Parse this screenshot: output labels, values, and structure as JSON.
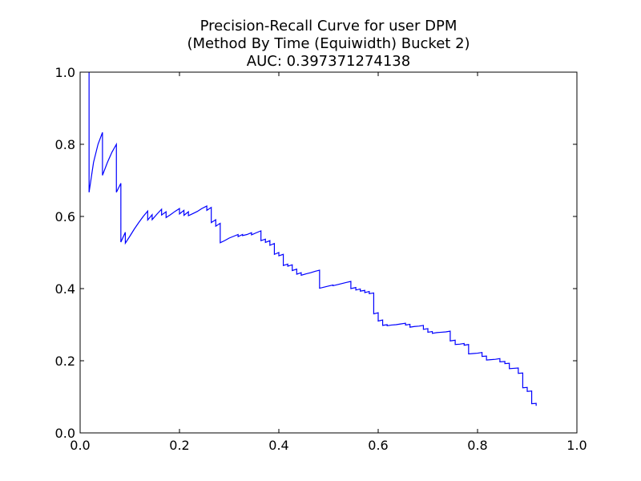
{
  "chart_data": {
    "type": "line",
    "title_lines": [
      "Precision-Recall Curve for user DPM",
      "(Method By Time (Equiwidth) Bucket 2)",
      "AUC: 0.397371274138"
    ],
    "xlabel": "",
    "ylabel": "",
    "xlim": [
      0.0,
      1.0
    ],
    "ylim": [
      0.0,
      1.0
    ],
    "x_ticks": [
      "0.0",
      "0.2",
      "0.4",
      "0.6",
      "0.8",
      "1.0"
    ],
    "y_ticks": [
      "0.0",
      "0.2",
      "0.4",
      "0.6",
      "0.8",
      "1.0"
    ],
    "grid": false,
    "legend": "none",
    "series": [
      {
        "color": "#0000ff",
        "points": [
          [
            0.018,
            1.0
          ],
          [
            0.018,
            0.667
          ],
          [
            0.027,
            0.75
          ],
          [
            0.036,
            0.8
          ],
          [
            0.045,
            0.833
          ],
          [
            0.045,
            0.714
          ],
          [
            0.055,
            0.75
          ],
          [
            0.064,
            0.778
          ],
          [
            0.073,
            0.8
          ],
          [
            0.073,
            0.667
          ],
          [
            0.082,
            0.692
          ],
          [
            0.082,
            0.529
          ],
          [
            0.091,
            0.556
          ],
          [
            0.091,
            0.526
          ],
          [
            0.1,
            0.545
          ],
          [
            0.109,
            0.565
          ],
          [
            0.118,
            0.583
          ],
          [
            0.127,
            0.6
          ],
          [
            0.136,
            0.615
          ],
          [
            0.136,
            0.59
          ],
          [
            0.145,
            0.605
          ],
          [
            0.145,
            0.591
          ],
          [
            0.155,
            0.607
          ],
          [
            0.164,
            0.62
          ],
          [
            0.164,
            0.604
          ],
          [
            0.173,
            0.613
          ],
          [
            0.173,
            0.597
          ],
          [
            0.182,
            0.605
          ],
          [
            0.191,
            0.614
          ],
          [
            0.2,
            0.622
          ],
          [
            0.2,
            0.607
          ],
          [
            0.209,
            0.617
          ],
          [
            0.209,
            0.603
          ],
          [
            0.218,
            0.613
          ],
          [
            0.218,
            0.602
          ],
          [
            0.227,
            0.608
          ],
          [
            0.236,
            0.614
          ],
          [
            0.245,
            0.622
          ],
          [
            0.255,
            0.629
          ],
          [
            0.255,
            0.617
          ],
          [
            0.264,
            0.625
          ],
          [
            0.264,
            0.583
          ],
          [
            0.273,
            0.591
          ],
          [
            0.273,
            0.573
          ],
          [
            0.282,
            0.581
          ],
          [
            0.282,
            0.527
          ],
          [
            0.291,
            0.533
          ],
          [
            0.3,
            0.54
          ],
          [
            0.309,
            0.545
          ],
          [
            0.318,
            0.55
          ],
          [
            0.318,
            0.544
          ],
          [
            0.327,
            0.55
          ],
          [
            0.327,
            0.547
          ],
          [
            0.336,
            0.55
          ],
          [
            0.345,
            0.555
          ],
          [
            0.345,
            0.549
          ],
          [
            0.355,
            0.555
          ],
          [
            0.364,
            0.56
          ],
          [
            0.364,
            0.533
          ],
          [
            0.373,
            0.537
          ],
          [
            0.373,
            0.528
          ],
          [
            0.382,
            0.533
          ],
          [
            0.382,
            0.52
          ],
          [
            0.391,
            0.525
          ],
          [
            0.391,
            0.495
          ],
          [
            0.4,
            0.5
          ],
          [
            0.4,
            0.491
          ],
          [
            0.409,
            0.495
          ],
          [
            0.409,
            0.464
          ],
          [
            0.418,
            0.468
          ],
          [
            0.418,
            0.462
          ],
          [
            0.427,
            0.466
          ],
          [
            0.427,
            0.45
          ],
          [
            0.436,
            0.454
          ],
          [
            0.436,
            0.44
          ],
          [
            0.445,
            0.444
          ],
          [
            0.445,
            0.437
          ],
          [
            0.455,
            0.441
          ],
          [
            0.464,
            0.444
          ],
          [
            0.473,
            0.448
          ],
          [
            0.482,
            0.451
          ],
          [
            0.482,
            0.401
          ],
          [
            0.491,
            0.404
          ],
          [
            0.5,
            0.407
          ],
          [
            0.509,
            0.41
          ],
          [
            0.509,
            0.408
          ],
          [
            0.518,
            0.411
          ],
          [
            0.527,
            0.414
          ],
          [
            0.536,
            0.417
          ],
          [
            0.545,
            0.42
          ],
          [
            0.545,
            0.4
          ],
          [
            0.555,
            0.403
          ],
          [
            0.555,
            0.396
          ],
          [
            0.564,
            0.399
          ],
          [
            0.564,
            0.393
          ],
          [
            0.573,
            0.395
          ],
          [
            0.573,
            0.389
          ],
          [
            0.582,
            0.392
          ],
          [
            0.582,
            0.386
          ],
          [
            0.591,
            0.388
          ],
          [
            0.591,
            0.33
          ],
          [
            0.6,
            0.333
          ],
          [
            0.6,
            0.31
          ],
          [
            0.609,
            0.313
          ],
          [
            0.609,
            0.298
          ],
          [
            0.618,
            0.3
          ],
          [
            0.618,
            0.297
          ],
          [
            0.627,
            0.299
          ],
          [
            0.636,
            0.3
          ],
          [
            0.645,
            0.302
          ],
          [
            0.655,
            0.304
          ],
          [
            0.655,
            0.299
          ],
          [
            0.664,
            0.301
          ],
          [
            0.664,
            0.293
          ],
          [
            0.673,
            0.295
          ],
          [
            0.682,
            0.296
          ],
          [
            0.691,
            0.298
          ],
          [
            0.691,
            0.287
          ],
          [
            0.7,
            0.289
          ],
          [
            0.7,
            0.279
          ],
          [
            0.709,
            0.281
          ],
          [
            0.709,
            0.276
          ],
          [
            0.718,
            0.278
          ],
          [
            0.727,
            0.279
          ],
          [
            0.736,
            0.28
          ],
          [
            0.745,
            0.282
          ],
          [
            0.745,
            0.255
          ],
          [
            0.755,
            0.257
          ],
          [
            0.755,
            0.245
          ],
          [
            0.764,
            0.246
          ],
          [
            0.773,
            0.248
          ],
          [
            0.773,
            0.243
          ],
          [
            0.782,
            0.245
          ],
          [
            0.782,
            0.219
          ],
          [
            0.791,
            0.22
          ],
          [
            0.8,
            0.221
          ],
          [
            0.809,
            0.223
          ],
          [
            0.809,
            0.212
          ],
          [
            0.818,
            0.213
          ],
          [
            0.818,
            0.202
          ],
          [
            0.827,
            0.203
          ],
          [
            0.836,
            0.204
          ],
          [
            0.845,
            0.206
          ],
          [
            0.845,
            0.197
          ],
          [
            0.855,
            0.198
          ],
          [
            0.855,
            0.192
          ],
          [
            0.864,
            0.193
          ],
          [
            0.864,
            0.178
          ],
          [
            0.873,
            0.179
          ],
          [
            0.882,
            0.18
          ],
          [
            0.882,
            0.165
          ],
          [
            0.891,
            0.166
          ],
          [
            0.891,
            0.125
          ],
          [
            0.9,
            0.126
          ],
          [
            0.9,
            0.115
          ],
          [
            0.909,
            0.116
          ],
          [
            0.909,
            0.081
          ],
          [
            0.918,
            0.082
          ],
          [
            0.918,
            0.075
          ]
        ]
      }
    ]
  }
}
